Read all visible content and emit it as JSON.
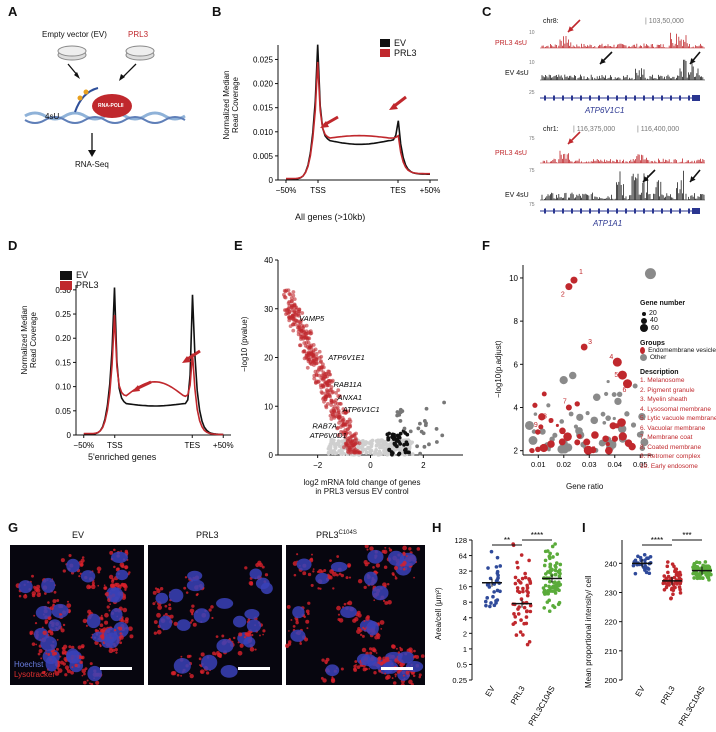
{
  "panels": {
    "A": "A",
    "B": "B",
    "C": "C",
    "D": "D",
    "E": "E",
    "F": "F",
    "G": "G",
    "H": "H",
    "I": "I"
  },
  "panelA": {
    "ev": "Empty vector (EV)",
    "prl3": "PRL3",
    "label4su": "4sU",
    "polii": "RNA-POLII",
    "rnaseq": "RNA-Seq"
  },
  "panelB": {
    "ylabel1": "Normalized Median",
    "ylabel2": "Read Coverage",
    "xlabel": "All genes (>10kb)",
    "legend": [
      "EV",
      "PRL3"
    ],
    "yticks": [
      "0",
      "0.005",
      "0.010",
      "0.015",
      "0.020",
      "0.025"
    ],
    "xticks": [
      "−50%",
      "TSS",
      "TES",
      "+50%"
    ]
  },
  "panelC": {
    "chr8": "chr8:",
    "pos1": "| 103,50,000",
    "prl3_4su": "PRL3 4sU",
    "ev_4su": "EV 4sU",
    "gene1": "ATP6V1C1",
    "scale1a": "10",
    "scale1b": "10",
    "scale1c": "25",
    "chr1": "chr1:",
    "pos2a": "| 116,375,000",
    "pos2b": "| 116,400,000",
    "gene2": "ATP1A1",
    "scale2a": "75",
    "scale2b": "75",
    "scale2c": "75"
  },
  "panelD": {
    "ylabel1": "Normalized Median",
    "ylabel2": "Read Coverage",
    "xlabel": "5'enriched genes",
    "legend": [
      "EV",
      "PRL3"
    ],
    "yticks": [
      "0",
      "0.05",
      "0.10",
      "0.15",
      "0.20",
      "0.25",
      "0.30"
    ],
    "xticks": [
      "−50%",
      "TSS",
      "TES",
      "+50%"
    ]
  },
  "panelE": {
    "ylabel": "−log10 (pvalue)",
    "xlabel1": "log2 mRNA fold change of genes",
    "xlabel2": "in PRL3 versus EV control",
    "yticks": [
      "0",
      "10",
      "20",
      "30",
      "40"
    ],
    "xticks": [
      "−2",
      "0",
      "2"
    ],
    "genes": [
      "VAMP5",
      "ATP6V1E1",
      "RAB11A",
      "ANXA1",
      "ATP6V1C1",
      "RAB7A",
      "ATP6V0D1"
    ]
  },
  "panelF": {
    "ylabel": "−log10(p.adjust)",
    "xlabel": "Gene ratio",
    "yticks": [
      "2",
      "4",
      "6",
      "8",
      "10"
    ],
    "xticks": [
      "0.01",
      "0.02",
      "0.03",
      "0.04",
      "0.05"
    ],
    "geneNumberTitle": "Gene number",
    "geneNumbers": [
      "20",
      "40",
      "60"
    ],
    "groupsTitle": "Groups",
    "groups": [
      "Endomembrane vesicle",
      "Other"
    ],
    "descTitle": "Description",
    "desc": [
      "1. Melanosome",
      "2. Pigment granule",
      "3. Myelin sheath",
      "4. Lysosomal membrane",
      "5. Lytic vacuole membrane",
      "6. Vacuolar membrane",
      "7. Membrane coat",
      "8. Coated membrane",
      "9. Retromer complex",
      "10. Early endosome"
    ],
    "pointLabels": [
      "1",
      "2",
      "3",
      "4",
      "5",
      "6",
      "7",
      "8",
      "9",
      "10"
    ]
  },
  "panelG": {
    "ev": "EV",
    "prl3": "PRL3",
    "mut": "PRL3",
    "mutSup": "C104S",
    "hoechst": "Hoechst",
    "lyso": "Lysotracker"
  },
  "panelH": {
    "ylabel": "Area/cell (μm²)",
    "yticks": [
      "0.25",
      "0.5",
      "1",
      "2",
      "4",
      "8",
      "16",
      "32",
      "64",
      "128"
    ],
    "sig1": "**",
    "sig2": "****",
    "xticks": [
      "EV",
      "PRL3",
      "PRL3C104S"
    ]
  },
  "panelI": {
    "ylabel": "Mean proportional intensity/ cell",
    "yticks": [
      "200",
      "210",
      "220",
      "230",
      "240"
    ],
    "sig1": "****",
    "sig2": "***",
    "xticks": [
      "EV",
      "PRL3",
      "PRL3C104S"
    ]
  },
  "colors": {
    "red": "#c0282d",
    "black": "#111111",
    "grey": "#8a8a8a",
    "blue": "#2f4a9a",
    "green": "#5aab3a"
  }
}
